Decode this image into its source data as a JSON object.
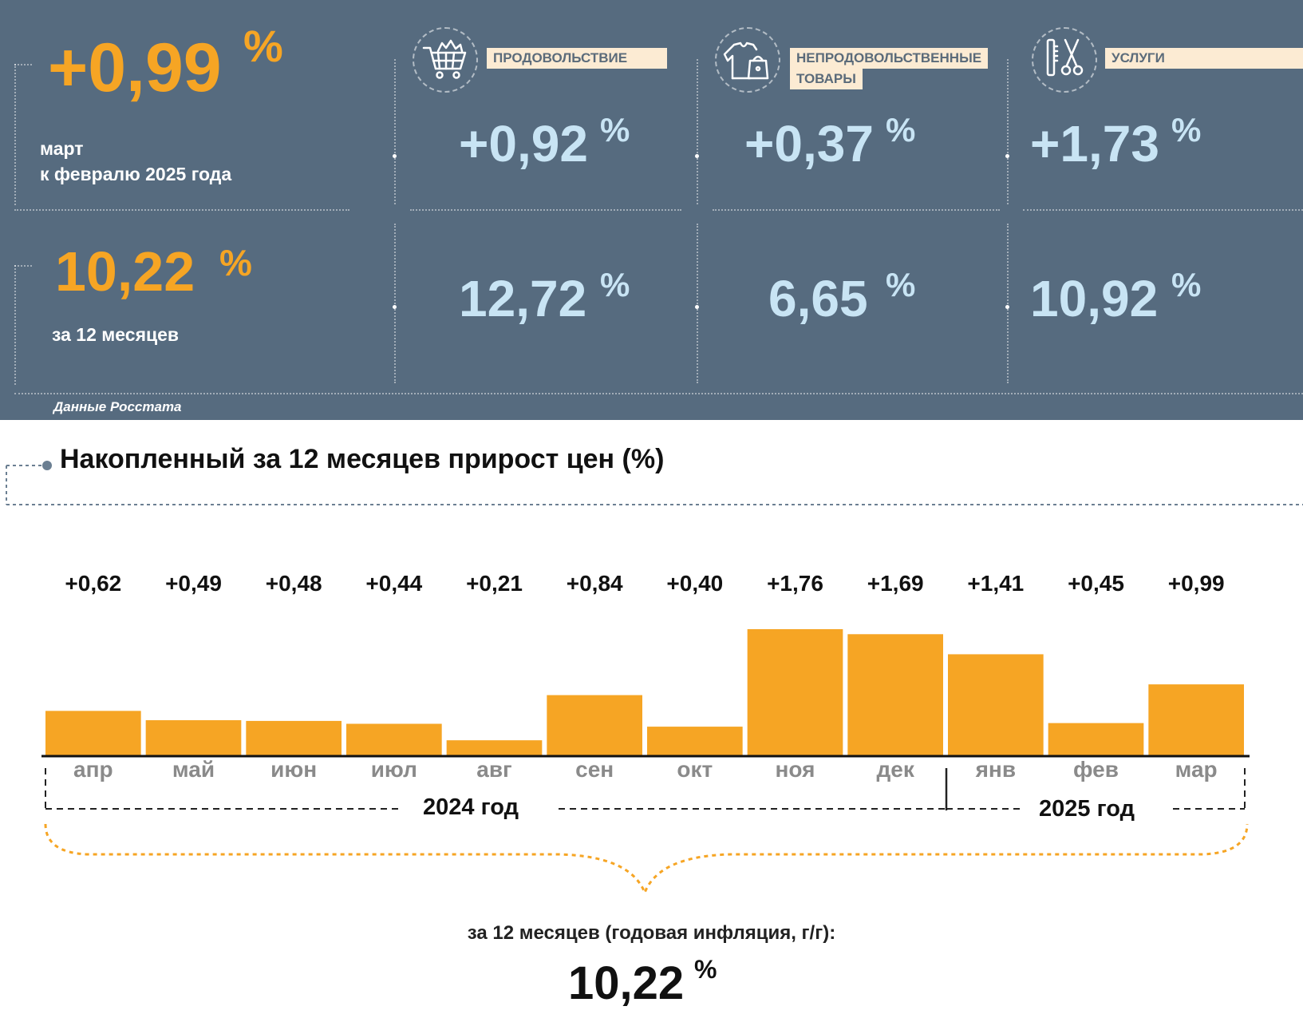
{
  "summary": {
    "monthly_value": "+0,99",
    "monthly_unit": "%",
    "monthly_caption_line1": "март",
    "monthly_caption_line2": "к февралю 2025 года",
    "annual_value": "10,22",
    "annual_unit": "%",
    "annual_caption": "за 12 месяцев"
  },
  "categories": [
    {
      "label": "ПРОДОВОЛЬСТВИЕ",
      "label_line2": "",
      "icon": "shopping-cart-icon",
      "monthly": "+0,92",
      "annual": "12,72",
      "unit": "%"
    },
    {
      "label": "НЕПРОДОВОЛЬСТВЕННЫЕ",
      "label_line2": "ТОВАРЫ",
      "icon": "clothing-bag-icon",
      "monthly": "+0,37",
      "annual": "6,65",
      "unit": "%"
    },
    {
      "label": "УСЛУГИ",
      "label_line2": "",
      "icon": "scissors-comb-icon",
      "monthly": "+1,73",
      "annual": "10,92",
      "unit": "%"
    }
  ],
  "source": "Данные Росстата",
  "chart_data": {
    "type": "bar",
    "title": "Накопленный за 12 месяцев прирост цен (%)",
    "categories": [
      "апр",
      "май",
      "июн",
      "июл",
      "авг",
      "сен",
      "окт",
      "ноя",
      "дек",
      "янв",
      "фев",
      "мар"
    ],
    "values": [
      0.62,
      0.49,
      0.48,
      0.44,
      0.21,
      0.84,
      0.4,
      1.76,
      1.69,
      1.41,
      0.45,
      0.99
    ],
    "value_labels": [
      "+0,62",
      "+0,49",
      "+0,48",
      "+0,44",
      "+0,21",
      "+0,84",
      "+0,40",
      "+1,76",
      "+1,69",
      "+1,41",
      "+0,45",
      "+0,99"
    ],
    "year_groups": [
      {
        "label": "2024 год",
        "months": 9
      },
      {
        "label": "2025 год",
        "months": 3
      }
    ],
    "ylim": [
      0,
      1.76
    ],
    "bar_color": "#f6a524",
    "grid": false
  },
  "footer": {
    "caption": "за 12 месяцев (годовая инфляция, г/г):",
    "value": "10,22",
    "unit": "%"
  },
  "colors": {
    "panel": "#566b7f",
    "accent": "#f6a524",
    "light_value": "#c8e4f4",
    "label_bg": "#fcebd3"
  }
}
